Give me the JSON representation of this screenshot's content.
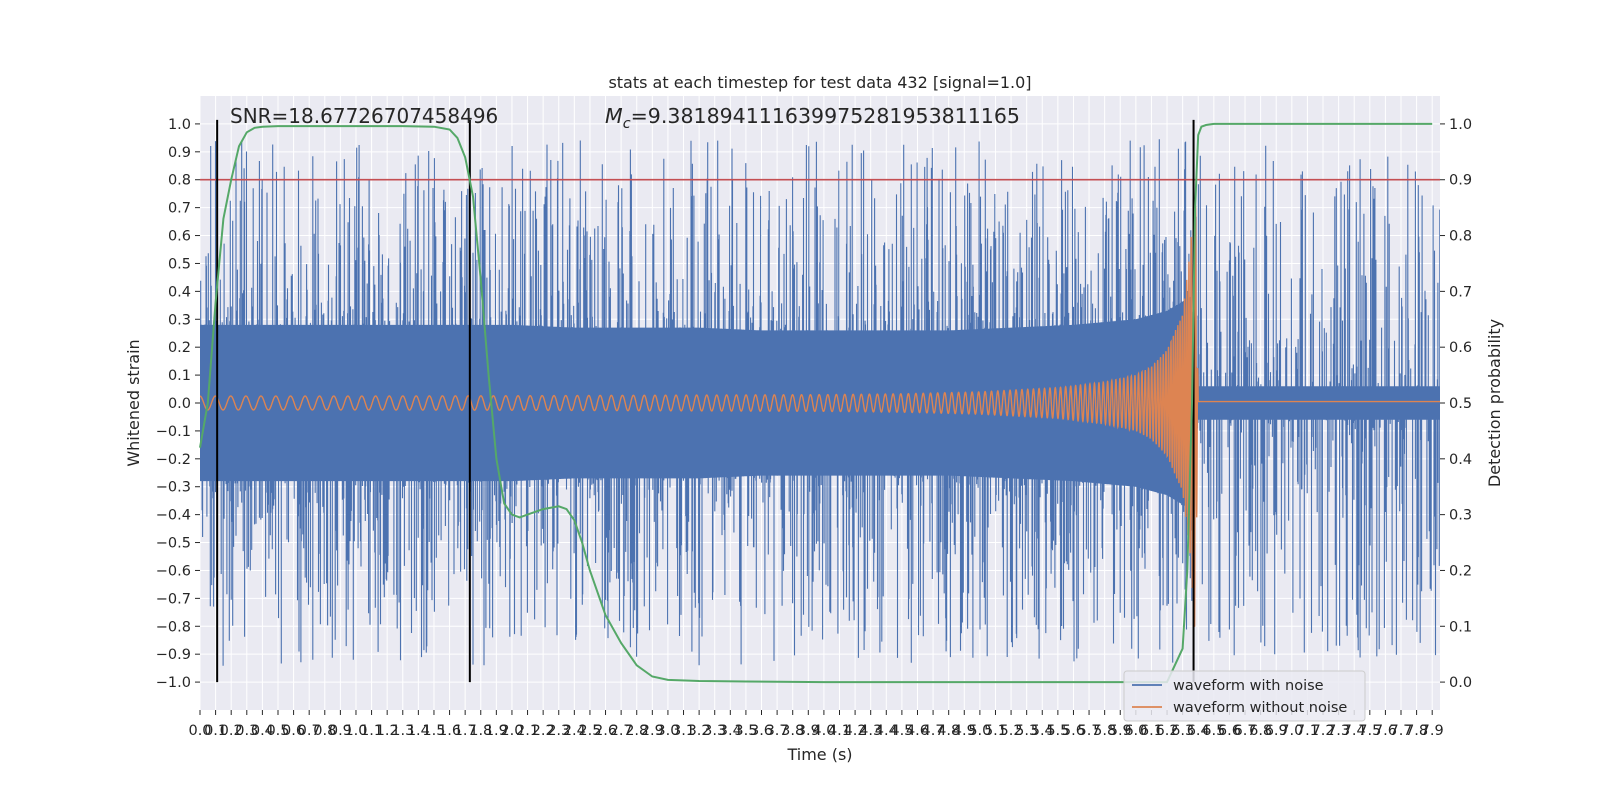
{
  "chart_data": {
    "type": "line",
    "title": "stats at each timestep for test data 432 [signal=1.0]",
    "xlabel": "Time (s)",
    "ylabel": "Whitened strain",
    "y2label": "Detection probability",
    "xlim": [
      0.0,
      7.95
    ],
    "ylim": [
      -1.1,
      1.1
    ],
    "y2lim": [
      -0.05,
      1.05
    ],
    "xticks": [
      0.0,
      0.1,
      0.2,
      0.3,
      0.4,
      0.5,
      0.6,
      0.7,
      0.8,
      0.9,
      1.0,
      1.1,
      1.2,
      1.3,
      1.4,
      1.5,
      1.6,
      1.7,
      1.8,
      1.9,
      2.0,
      2.1,
      2.2,
      2.3,
      2.4,
      2.5,
      2.6,
      2.7,
      2.8,
      2.9,
      3.0,
      3.1,
      3.2,
      3.3,
      3.4,
      3.5,
      3.6,
      3.7,
      3.8,
      3.9,
      4.0,
      4.1,
      4.2,
      4.3,
      4.4,
      4.5,
      4.6,
      4.7,
      4.8,
      4.9,
      5.0,
      5.1,
      5.2,
      5.3,
      5.4,
      5.5,
      5.6,
      5.7,
      5.8,
      5.9,
      6.0,
      6.1,
      6.2,
      6.3,
      6.4,
      6.5,
      6.6,
      6.7,
      6.8,
      6.9,
      7.0,
      7.1,
      7.2,
      7.3,
      7.4,
      7.5,
      7.6,
      7.7,
      7.8,
      7.9
    ],
    "xtick_labels": [
      "0.0",
      "0.1",
      "0.2",
      "0.3",
      "0.4",
      "0.5",
      "0.6",
      "0.7",
      "0.8",
      "0.9",
      "1.0",
      "1.1",
      "1.2",
      "1.3",
      "1.4",
      "1.5",
      "1.6",
      "1.7",
      "1.8",
      "1.9",
      "2.0",
      "2.1",
      "2.2",
      "2.3",
      "2.4",
      "2.5",
      "2.6",
      "2.7",
      "2.8",
      "2.9",
      "3.0",
      "3.1",
      "3.2",
      "3.3",
      "3.4",
      "3.5",
      "3.6",
      "3.7",
      "3.8",
      "3.9",
      "4.0",
      "4.1",
      "4.2",
      "4.3",
      "4.4",
      "4.5",
      "4.6",
      "4.7",
      "4.8",
      "4.9",
      "5.0",
      "5.1",
      "5.2",
      "5.3",
      "5.4",
      "5.5",
      "5.6",
      "5.7",
      "5.8",
      "5.9",
      "6.0",
      "6.1",
      "6.2",
      "6.3",
      "6.4",
      "6.5",
      "6.6",
      "6.7",
      "6.8",
      "6.9",
      "7.0",
      "7.1",
      "7.2",
      "7.3",
      "7.4",
      "7.5",
      "7.6",
      "7.7",
      "7.8",
      "7.9"
    ],
    "yticks": [
      -1.0,
      -0.9,
      -0.8,
      -0.7,
      -0.6,
      -0.5,
      -0.4,
      -0.3,
      -0.2,
      -0.1,
      0.0,
      0.1,
      0.2,
      0.3,
      0.4,
      0.5,
      0.6,
      0.7,
      0.8,
      0.9,
      1.0
    ],
    "ytick_labels": [
      "−1.0",
      "−0.9",
      "−0.8",
      "−0.7",
      "−0.6",
      "−0.5",
      "−0.4",
      "−0.3",
      "−0.2",
      "−0.1",
      "0.0",
      "0.1",
      "0.2",
      "0.3",
      "0.4",
      "0.5",
      "0.6",
      "0.7",
      "0.8",
      "0.9",
      "1.0"
    ],
    "y2ticks": [
      0.0,
      0.1,
      0.2,
      0.3,
      0.4,
      0.5,
      0.6,
      0.7,
      0.8,
      0.9,
      1.0
    ],
    "y2tick_labels": [
      "0.0",
      "0.1",
      "0.2",
      "0.3",
      "0.4",
      "0.5",
      "0.6",
      "0.7",
      "0.8",
      "0.9",
      "1.0"
    ],
    "annotations": {
      "snr": "SNR=18.67726707458496",
      "mc_symbol": "M",
      "mc_sub": "c",
      "mc_value": "=9.381894111639975281953811165"
    },
    "legend": {
      "placement": "lower-right",
      "entries": [
        "waveform with noise",
        "waveform without noise"
      ]
    },
    "threshold": {
      "y2": 0.9,
      "color": "#c44e52"
    },
    "vertical_lines_x": [
      0.11,
      1.73,
      6.37
    ],
    "grid": true,
    "colors": {
      "noise": "#4c72b0",
      "clean": "#dd8452",
      "probability": "#55a868",
      "threshold": "#c44e52",
      "background": "#eaeaf2",
      "grid": "#ffffff"
    },
    "series": [
      {
        "name": "waveform with noise",
        "type": "noise-filled",
        "envelope_x": [
          0.0,
          0.4,
          0.8,
          1.2,
          1.6,
          2.0,
          2.4,
          2.8,
          3.2,
          3.6,
          4.0,
          4.4,
          4.8,
          5.2,
          5.6,
          6.0,
          6.2,
          6.35,
          6.4,
          7.0,
          7.95
        ],
        "envelope_upper": [
          0.28,
          0.28,
          0.28,
          0.28,
          0.28,
          0.28,
          0.27,
          0.27,
          0.27,
          0.26,
          0.26,
          0.26,
          0.26,
          0.27,
          0.28,
          0.3,
          0.33,
          0.38,
          0.06,
          0.06,
          0.06
        ],
        "envelope_lower": [
          -0.28,
          -0.28,
          -0.28,
          -0.28,
          -0.28,
          -0.28,
          -0.27,
          -0.27,
          -0.27,
          -0.26,
          -0.26,
          -0.26,
          -0.26,
          -0.27,
          -0.28,
          -0.3,
          -0.33,
          -0.38,
          -0.06,
          -0.06,
          -0.06
        ],
        "peak_range": [
          -1.0,
          1.0
        ]
      },
      {
        "name": "waveform without noise",
        "type": "chirp",
        "envelope_x": [
          0.0,
          1.0,
          2.0,
          3.0,
          4.0,
          4.5,
          5.0,
          5.5,
          5.8,
          6.0,
          6.1,
          6.2,
          6.3,
          6.35,
          6.38,
          6.4,
          7.95
        ],
        "amplitude": [
          0.025,
          0.025,
          0.026,
          0.028,
          0.03,
          0.033,
          0.04,
          0.055,
          0.075,
          0.1,
          0.13,
          0.19,
          0.32,
          0.55,
          0.85,
          0.0,
          0.0
        ],
        "peak_time": 6.38
      },
      {
        "name": "",
        "axis": "y2",
        "x": [
          0.0,
          0.05,
          0.1,
          0.15,
          0.2,
          0.25,
          0.3,
          0.35,
          0.4,
          0.5,
          0.7,
          1.0,
          1.3,
          1.5,
          1.6,
          1.65,
          1.7,
          1.75,
          1.8,
          1.85,
          1.9,
          1.95,
          2.0,
          2.05,
          2.1,
          2.2,
          2.3,
          2.35,
          2.4,
          2.45,
          2.5,
          2.6,
          2.7,
          2.8,
          2.9,
          3.0,
          3.2,
          3.5,
          4.0,
          5.0,
          6.0,
          6.2,
          6.3,
          6.33,
          6.36,
          6.38,
          6.4,
          6.42,
          6.45,
          6.5,
          6.6,
          7.0,
          7.9
        ],
        "y": [
          0.42,
          0.5,
          0.68,
          0.83,
          0.9,
          0.96,
          0.985,
          0.993,
          0.995,
          0.996,
          0.996,
          0.996,
          0.996,
          0.995,
          0.99,
          0.975,
          0.94,
          0.87,
          0.72,
          0.55,
          0.4,
          0.32,
          0.3,
          0.295,
          0.3,
          0.31,
          0.315,
          0.31,
          0.29,
          0.25,
          0.2,
          0.12,
          0.07,
          0.03,
          0.01,
          0.004,
          0.002,
          0.001,
          0.0,
          0.0,
          0.0,
          0.0,
          0.06,
          0.2,
          0.5,
          0.85,
          0.98,
          0.995,
          0.998,
          1.0,
          1.0,
          1.0,
          1.0
        ]
      }
    ]
  }
}
